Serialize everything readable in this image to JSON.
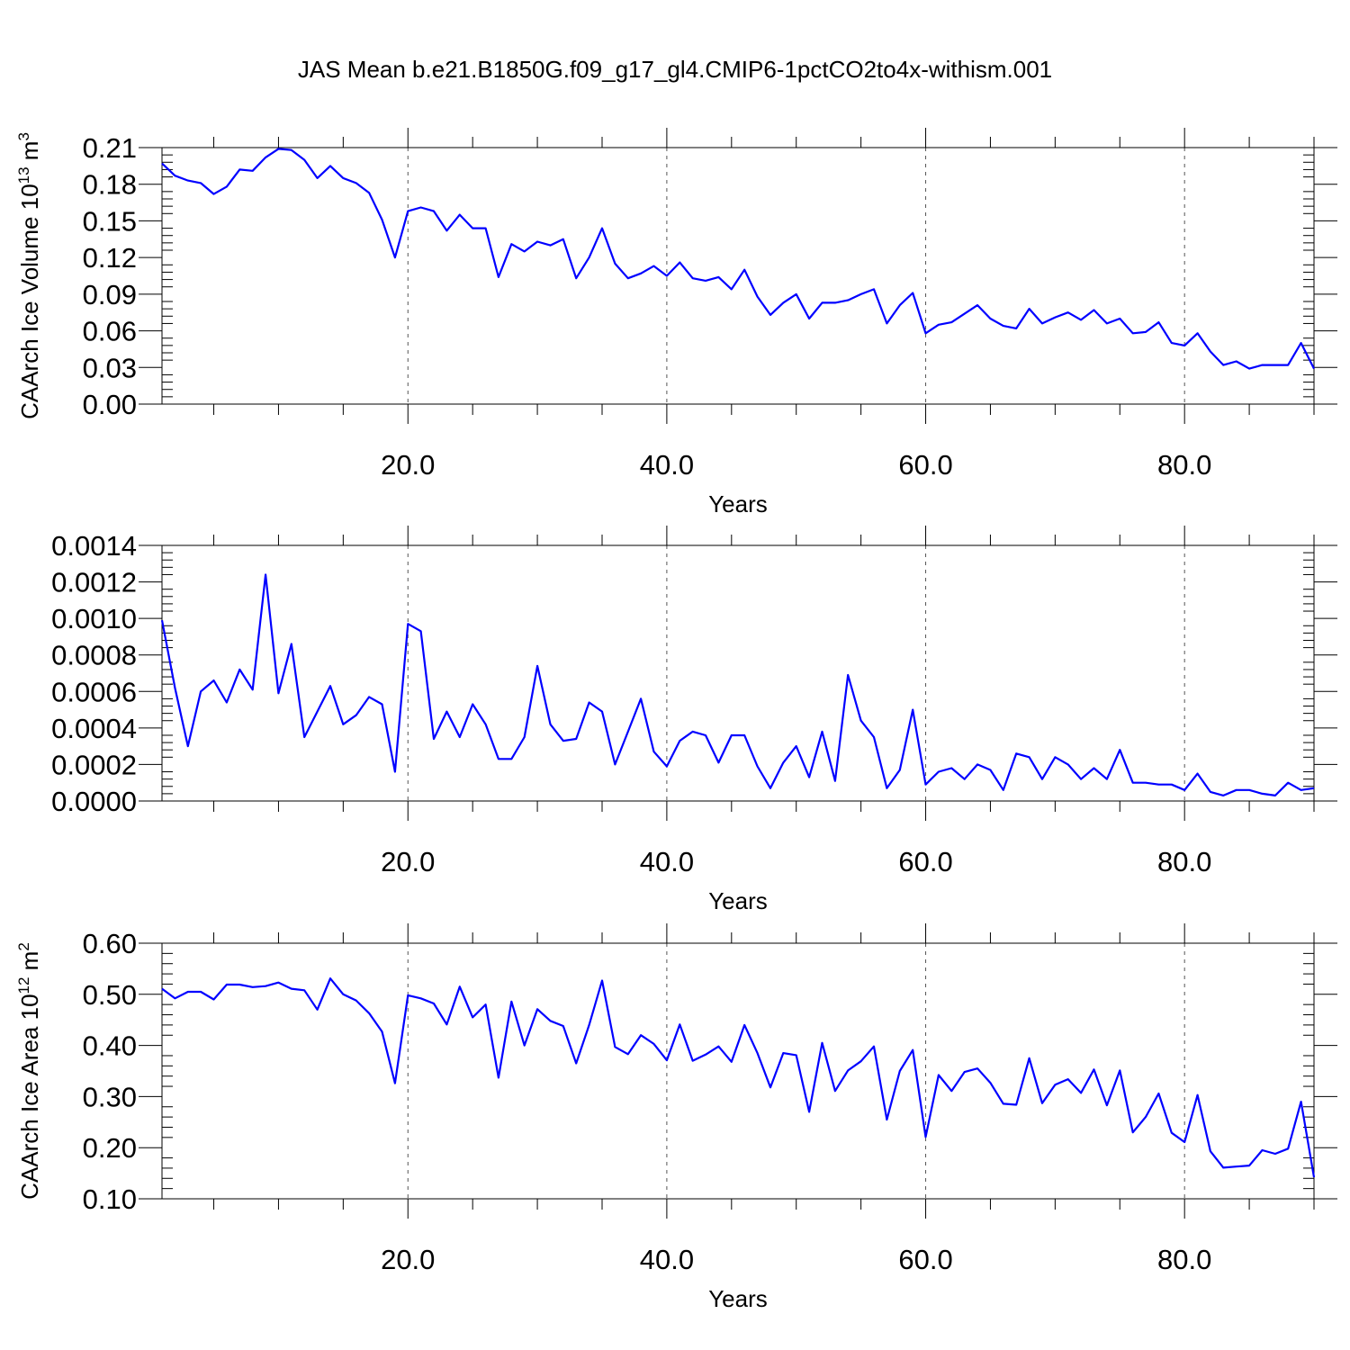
{
  "title": "JAS Mean b.e21.B1850G.f09_g17_gl4.CMIP6-1pctCO2to4x-withism.001",
  "colors": {
    "series": "#0000ff",
    "axis": "#000000",
    "grid": "#555555"
  },
  "chart_data": [
    {
      "type": "line",
      "xlabel": "Years",
      "ylabel_main": "CAArch Ice Volume 10",
      "ylabel_sup": "13",
      "ylabel_unit": " m",
      "ylabel_unit_sup": "3",
      "xlim": [
        1,
        90
      ],
      "ylim": [
        0.0,
        0.21
      ],
      "xticks": [
        20,
        40,
        60,
        80
      ],
      "xtick_labels": [
        "20.0",
        "40.0",
        "60.0",
        "80.0"
      ],
      "yticks": [
        0.0,
        0.03,
        0.06,
        0.09,
        0.12,
        0.15,
        0.18,
        0.21
      ],
      "ytick_labels": [
        "0.00",
        "0.03",
        "0.06",
        "0.09",
        "0.12",
        "0.15",
        "0.18",
        "0.21"
      ],
      "grid": "vertical dashed at major x ticks",
      "x_start": 1,
      "x_step": 1,
      "values": [
        0.197,
        0.187,
        0.183,
        0.181,
        0.172,
        0.178,
        0.192,
        0.191,
        0.202,
        0.209,
        0.208,
        0.2,
        0.185,
        0.195,
        0.185,
        0.181,
        0.173,
        0.151,
        0.12,
        0.158,
        0.161,
        0.158,
        0.142,
        0.155,
        0.144,
        0.144,
        0.104,
        0.131,
        0.125,
        0.133,
        0.13,
        0.135,
        0.103,
        0.12,
        0.144,
        0.115,
        0.103,
        0.107,
        0.113,
        0.105,
        0.116,
        0.103,
        0.101,
        0.104,
        0.094,
        0.11,
        0.088,
        0.073,
        0.083,
        0.09,
        0.07,
        0.083,
        0.083,
        0.085,
        0.09,
        0.094,
        0.066,
        0.081,
        0.091,
        0.058,
        0.065,
        0.067,
        0.074,
        0.081,
        0.07,
        0.064,
        0.062,
        0.078,
        0.066,
        0.071,
        0.075,
        0.069,
        0.077,
        0.066,
        0.07,
        0.058,
        0.059,
        0.067,
        0.05,
        0.048,
        0.058,
        0.043,
        0.032,
        0.035,
        0.029,
        0.032,
        0.032,
        0.032,
        0.05,
        0.029
      ]
    },
    {
      "type": "line",
      "xlabel": "Years",
      "ylabel_main": "",
      "ylabel_sup": "",
      "ylabel_unit": "",
      "ylabel_unit_sup": "",
      "xlim": [
        1,
        90
      ],
      "ylim": [
        0.0,
        0.0014
      ],
      "xticks": [
        20,
        40,
        60,
        80
      ],
      "xtick_labels": [
        "20.0",
        "40.0",
        "60.0",
        "80.0"
      ],
      "yticks": [
        0.0,
        0.0002,
        0.0004,
        0.0006,
        0.0008,
        0.001,
        0.0012,
        0.0014
      ],
      "ytick_labels": [
        "0.0000",
        "0.0002",
        "0.0004",
        "0.0006",
        "0.0008",
        "0.0010",
        "0.0012",
        "0.0014"
      ],
      "grid": "vertical dashed at major x ticks",
      "x_start": 1,
      "x_step": 1,
      "values": [
        0.00099,
        0.00062,
        0.0003,
        0.0006,
        0.00066,
        0.00054,
        0.00072,
        0.00061,
        0.00124,
        0.00059,
        0.00086,
        0.00035,
        0.00049,
        0.00063,
        0.00042,
        0.00047,
        0.00057,
        0.00053,
        0.00016,
        0.00097,
        0.00093,
        0.00034,
        0.00049,
        0.00035,
        0.00053,
        0.00042,
        0.00023,
        0.00023,
        0.00035,
        0.00074,
        0.00042,
        0.00033,
        0.00034,
        0.00054,
        0.00049,
        0.0002,
        0.00038,
        0.00056,
        0.00027,
        0.00019,
        0.00033,
        0.00038,
        0.00036,
        0.00021,
        0.00036,
        0.00036,
        0.00019,
        7e-05,
        0.00021,
        0.0003,
        0.00013,
        0.00038,
        0.00011,
        0.00069,
        0.00044,
        0.00035,
        7e-05,
        0.00017,
        0.0005,
        9e-05,
        0.00016,
        0.00018,
        0.00012,
        0.0002,
        0.00017,
        6e-05,
        0.00026,
        0.00024,
        0.00012,
        0.00024,
        0.0002,
        0.00012,
        0.00018,
        0.00012,
        0.00028,
        0.0001,
        0.0001,
        9e-05,
        9e-05,
        6e-05,
        0.00015,
        5e-05,
        3e-05,
        6e-05,
        6e-05,
        4e-05,
        3e-05,
        0.0001,
        6e-05,
        7e-05
      ]
    },
    {
      "type": "line",
      "xlabel": "Years",
      "ylabel_main": "CAArch Ice Area 10",
      "ylabel_sup": "12",
      "ylabel_unit": " m",
      "ylabel_unit_sup": "2",
      "xlim": [
        1,
        90
      ],
      "ylim": [
        0.1,
        0.6
      ],
      "xticks": [
        20,
        40,
        60,
        80
      ],
      "xtick_labels": [
        "20.0",
        "40.0",
        "60.0",
        "80.0"
      ],
      "yticks": [
        0.1,
        0.2,
        0.3,
        0.4,
        0.5,
        0.6
      ],
      "ytick_labels": [
        "0.10",
        "0.20",
        "0.30",
        "0.40",
        "0.50",
        "0.60"
      ],
      "grid": "vertical dashed at major x ticks",
      "x_start": 1,
      "x_step": 1,
      "values": [
        0.511,
        0.492,
        0.505,
        0.505,
        0.49,
        0.519,
        0.519,
        0.514,
        0.516,
        0.523,
        0.511,
        0.508,
        0.47,
        0.531,
        0.5,
        0.488,
        0.463,
        0.427,
        0.326,
        0.498,
        0.492,
        0.482,
        0.441,
        0.515,
        0.455,
        0.48,
        0.337,
        0.486,
        0.4,
        0.471,
        0.448,
        0.438,
        0.365,
        0.44,
        0.527,
        0.397,
        0.383,
        0.42,
        0.403,
        0.371,
        0.441,
        0.37,
        0.382,
        0.398,
        0.368,
        0.44,
        0.385,
        0.318,
        0.385,
        0.381,
        0.27,
        0.405,
        0.311,
        0.351,
        0.369,
        0.398,
        0.255,
        0.35,
        0.391,
        0.221,
        0.342,
        0.311,
        0.348,
        0.355,
        0.327,
        0.286,
        0.284,
        0.375,
        0.287,
        0.323,
        0.334,
        0.307,
        0.353,
        0.283,
        0.351,
        0.23,
        0.26,
        0.306,
        0.229,
        0.211,
        0.303,
        0.193,
        0.161,
        0.163,
        0.165,
        0.195,
        0.188,
        0.198,
        0.29,
        0.142
      ]
    }
  ]
}
